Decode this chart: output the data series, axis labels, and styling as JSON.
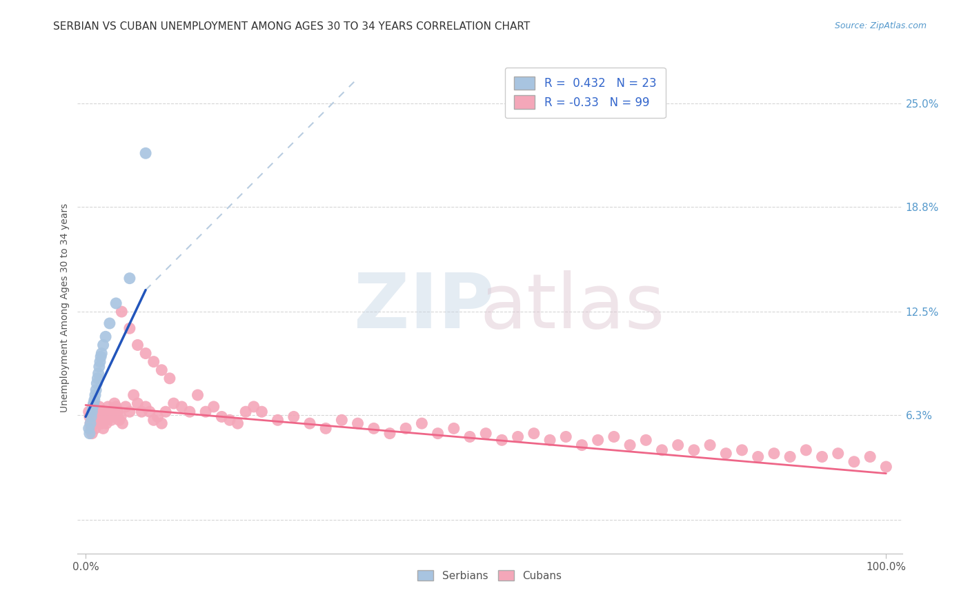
{
  "title": "SERBIAN VS CUBAN UNEMPLOYMENT AMONG AGES 30 TO 34 YEARS CORRELATION CHART",
  "source": "Source: ZipAtlas.com",
  "ylabel": "Unemployment Among Ages 30 to 34 years",
  "xlim": [
    -0.01,
    1.02
  ],
  "ylim": [
    -0.02,
    0.275
  ],
  "yticks": [
    0.0,
    0.063,
    0.125,
    0.188,
    0.25
  ],
  "ytick_labels": [
    "",
    "6.3%",
    "12.5%",
    "18.8%",
    "25.0%"
  ],
  "xticks": [
    0.0,
    1.0
  ],
  "xtick_labels": [
    "0.0%",
    "100.0%"
  ],
  "serbian_R": 0.432,
  "serbian_N": 23,
  "cuban_R": -0.33,
  "cuban_N": 99,
  "serbian_color": "#a8c4e0",
  "cuban_color": "#f4a7b9",
  "serbian_line_color": "#2255bb",
  "cuban_line_color": "#ee6688",
  "serbian_line_dash_color": "#b8cce0",
  "serb_x": [
    0.004,
    0.005,
    0.006,
    0.007,
    0.008,
    0.009,
    0.01,
    0.011,
    0.012,
    0.013,
    0.014,
    0.015,
    0.016,
    0.017,
    0.018,
    0.019,
    0.02,
    0.022,
    0.025,
    0.03,
    0.038,
    0.055,
    0.075
  ],
  "serb_y": [
    0.055,
    0.052,
    0.058,
    0.062,
    0.065,
    0.068,
    0.07,
    0.072,
    0.075,
    0.078,
    0.082,
    0.085,
    0.088,
    0.092,
    0.095,
    0.098,
    0.1,
    0.105,
    0.11,
    0.118,
    0.13,
    0.145,
    0.22
  ],
  "cuban_x": [
    0.004,
    0.005,
    0.006,
    0.007,
    0.008,
    0.009,
    0.01,
    0.011,
    0.012,
    0.013,
    0.015,
    0.016,
    0.017,
    0.018,
    0.019,
    0.02,
    0.022,
    0.023,
    0.025,
    0.026,
    0.028,
    0.03,
    0.032,
    0.034,
    0.036,
    0.038,
    0.04,
    0.042,
    0.044,
    0.046,
    0.05,
    0.055,
    0.06,
    0.065,
    0.07,
    0.075,
    0.08,
    0.085,
    0.09,
    0.095,
    0.1,
    0.11,
    0.12,
    0.13,
    0.14,
    0.15,
    0.16,
    0.17,
    0.18,
    0.19,
    0.2,
    0.21,
    0.22,
    0.24,
    0.26,
    0.28,
    0.3,
    0.32,
    0.34,
    0.36,
    0.38,
    0.4,
    0.42,
    0.44,
    0.46,
    0.48,
    0.5,
    0.52,
    0.54,
    0.56,
    0.58,
    0.6,
    0.62,
    0.64,
    0.66,
    0.68,
    0.7,
    0.72,
    0.74,
    0.76,
    0.78,
    0.8,
    0.82,
    0.84,
    0.86,
    0.88,
    0.9,
    0.92,
    0.94,
    0.96,
    0.98,
    1.0,
    0.045,
    0.055,
    0.065,
    0.075,
    0.085,
    0.095,
    0.105
  ],
  "cuban_y": [
    0.065,
    0.062,
    0.058,
    0.055,
    0.052,
    0.065,
    0.06,
    0.058,
    0.055,
    0.065,
    0.06,
    0.062,
    0.068,
    0.065,
    0.06,
    0.058,
    0.055,
    0.065,
    0.063,
    0.058,
    0.068,
    0.065,
    0.06,
    0.062,
    0.07,
    0.068,
    0.065,
    0.06,
    0.062,
    0.058,
    0.068,
    0.065,
    0.075,
    0.07,
    0.065,
    0.068,
    0.065,
    0.06,
    0.062,
    0.058,
    0.065,
    0.07,
    0.068,
    0.065,
    0.075,
    0.065,
    0.068,
    0.062,
    0.06,
    0.058,
    0.065,
    0.068,
    0.065,
    0.06,
    0.062,
    0.058,
    0.055,
    0.06,
    0.058,
    0.055,
    0.052,
    0.055,
    0.058,
    0.052,
    0.055,
    0.05,
    0.052,
    0.048,
    0.05,
    0.052,
    0.048,
    0.05,
    0.045,
    0.048,
    0.05,
    0.045,
    0.048,
    0.042,
    0.045,
    0.042,
    0.045,
    0.04,
    0.042,
    0.038,
    0.04,
    0.038,
    0.042,
    0.038,
    0.04,
    0.035,
    0.038,
    0.032,
    0.125,
    0.115,
    0.105,
    0.1,
    0.095,
    0.09,
    0.085
  ],
  "trendline_serb_x0": 0.0,
  "trendline_serb_y0": 0.062,
  "trendline_serb_x1": 0.075,
  "trendline_serb_y1": 0.138,
  "trendline_serb_dash_x1": 0.34,
  "trendline_serb_dash_y1": 0.265,
  "trendline_cuban_x0": 0.0,
  "trendline_cuban_y0": 0.069,
  "trendline_cuban_x1": 1.0,
  "trendline_cuban_y1": 0.028
}
